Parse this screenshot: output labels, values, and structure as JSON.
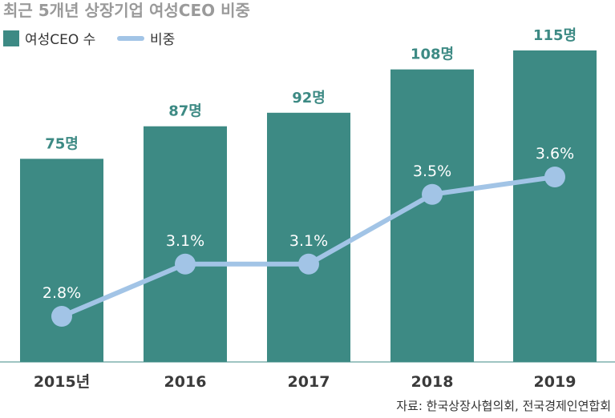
{
  "title": "최근 5개년 상장기업 여성CEO 비중",
  "legend": {
    "bar_label": "여성CEO 수",
    "line_label": "비중"
  },
  "source": "자료: 한국상장사협의회, 전국경제인연합회",
  "colors": {
    "bar": "#3d8a84",
    "line": "#a2c4e6",
    "title": "#9a9a9a"
  },
  "chart_data": {
    "type": "bar",
    "categories": [
      "2015년",
      "2016",
      "2017",
      "2018",
      "2019"
    ],
    "series": [
      {
        "name": "여성CEO 수",
        "type": "bar",
        "values": [
          75,
          87,
          92,
          108,
          115
        ],
        "labels": [
          "75명",
          "87명",
          "92명",
          "108명",
          "115명"
        ]
      },
      {
        "name": "비중",
        "type": "line",
        "values": [
          2.8,
          3.1,
          3.1,
          3.5,
          3.6
        ],
        "labels": [
          "2.8%",
          "3.1%",
          "3.1%",
          "3.5%",
          "3.6%"
        ]
      }
    ]
  }
}
